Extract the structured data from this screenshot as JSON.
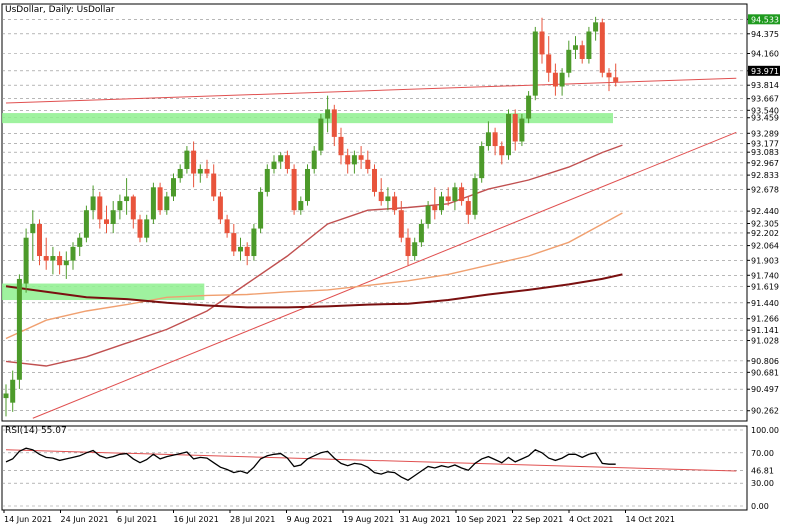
{
  "title": "UsDollar, Daily:  UsDollar",
  "colors": {
    "bull": "#4c9a2a",
    "bear": "#e8543c",
    "grid": "#8c8c8c",
    "zone": "#8ef08e",
    "trend": "#e05050",
    "ma_fast": "#c05050",
    "ma_mid": "#f0a070",
    "ma_slow": "#7a1010",
    "tag_bg": "#000000",
    "tag_bg_green": "#1e9a1e",
    "rsi_line": "#000000"
  },
  "chart_data": {
    "type": "candlestick",
    "instrument": "UsDollar",
    "timeframe": "Daily",
    "ylim": [
      90.15,
      94.7
    ],
    "xlabels": [
      "14 Jun 2021",
      "24 Jun 2021",
      "6 Jul 2021",
      "16 Jul 2021",
      "28 Jul 2021",
      "9 Aug 2021",
      "19 Aug 2021",
      "31 Aug 2021",
      "10 Sep 2021",
      "22 Sep 2021",
      "4 Oct 2021",
      "14 Oct 2021"
    ],
    "price_levels": [
      "94.533",
      "94.375",
      "94.160",
      "93.971",
      "93.814",
      "93.667",
      "93.540",
      "93.459",
      "93.289",
      "93.177",
      "93.083",
      "92.967",
      "92.833",
      "92.678",
      "92.440",
      "92.305",
      "92.202",
      "92.064",
      "91.903",
      "91.740",
      "91.619",
      "91.440",
      "91.266",
      "91.141",
      "91.028",
      "90.806",
      "90.681",
      "90.497",
      "90.262"
    ],
    "highlighted_levels": [
      "94.533",
      "93.971"
    ],
    "candles": [
      {
        "o": 90.4,
        "h": 90.55,
        "l": 90.2,
        "c": 90.45
      },
      {
        "o": 90.35,
        "h": 90.7,
        "l": 90.25,
        "c": 90.6
      },
      {
        "o": 90.6,
        "h": 91.75,
        "l": 90.5,
        "c": 91.7
      },
      {
        "o": 91.65,
        "h": 92.25,
        "l": 91.55,
        "c": 92.15
      },
      {
        "o": 92.2,
        "h": 92.45,
        "l": 91.9,
        "c": 92.3
      },
      {
        "o": 92.3,
        "h": 92.35,
        "l": 91.85,
        "c": 91.95
      },
      {
        "o": 91.95,
        "h": 92.15,
        "l": 91.8,
        "c": 91.9
      },
      {
        "o": 91.9,
        "h": 92.05,
        "l": 91.75,
        "c": 91.95
      },
      {
        "o": 91.95,
        "h": 92.0,
        "l": 91.75,
        "c": 91.85
      },
      {
        "o": 91.85,
        "h": 92.0,
        "l": 91.7,
        "c": 91.9
      },
      {
        "o": 91.9,
        "h": 92.1,
        "l": 91.8,
        "c": 92.05
      },
      {
        "o": 92.05,
        "h": 92.2,
        "l": 91.95,
        "c": 92.15
      },
      {
        "o": 92.15,
        "h": 92.5,
        "l": 92.1,
        "c": 92.45
      },
      {
        "o": 92.45,
        "h": 92.72,
        "l": 92.35,
        "c": 92.6
      },
      {
        "o": 92.6,
        "h": 92.65,
        "l": 92.25,
        "c": 92.35
      },
      {
        "o": 92.35,
        "h": 92.5,
        "l": 92.2,
        "c": 92.3
      },
      {
        "o": 92.3,
        "h": 92.55,
        "l": 92.2,
        "c": 92.45
      },
      {
        "o": 92.45,
        "h": 92.62,
        "l": 92.35,
        "c": 92.55
      },
      {
        "o": 92.55,
        "h": 92.8,
        "l": 92.4,
        "c": 92.6
      },
      {
        "o": 92.6,
        "h": 92.62,
        "l": 92.25,
        "c": 92.35
      },
      {
        "o": 92.35,
        "h": 92.4,
        "l": 92.1,
        "c": 92.15
      },
      {
        "o": 92.15,
        "h": 92.4,
        "l": 92.1,
        "c": 92.35
      },
      {
        "o": 92.35,
        "h": 92.75,
        "l": 92.3,
        "c": 92.7
      },
      {
        "o": 92.7,
        "h": 92.75,
        "l": 92.4,
        "c": 92.45
      },
      {
        "o": 92.45,
        "h": 92.65,
        "l": 92.4,
        "c": 92.6
      },
      {
        "o": 92.6,
        "h": 92.85,
        "l": 92.55,
        "c": 92.8
      },
      {
        "o": 92.8,
        "h": 92.95,
        "l": 92.75,
        "c": 92.9
      },
      {
        "o": 92.9,
        "h": 93.15,
        "l": 92.85,
        "c": 93.1
      },
      {
        "o": 93.1,
        "h": 93.2,
        "l": 92.7,
        "c": 92.85
      },
      {
        "o": 92.85,
        "h": 92.95,
        "l": 92.75,
        "c": 92.9
      },
      {
        "o": 92.9,
        "h": 93.0,
        "l": 92.8,
        "c": 92.85
      },
      {
        "o": 92.85,
        "h": 92.95,
        "l": 92.55,
        "c": 92.6
      },
      {
        "o": 92.6,
        "h": 92.65,
        "l": 92.3,
        "c": 92.35
      },
      {
        "o": 92.35,
        "h": 92.4,
        "l": 92.15,
        "c": 92.2
      },
      {
        "o": 92.2,
        "h": 92.3,
        "l": 91.95,
        "c": 92.0
      },
      {
        "o": 92.0,
        "h": 92.15,
        "l": 91.9,
        "c": 92.05
      },
      {
        "o": 92.05,
        "h": 92.1,
        "l": 91.85,
        "c": 91.95
      },
      {
        "o": 91.95,
        "h": 92.3,
        "l": 91.9,
        "c": 92.25
      },
      {
        "o": 92.25,
        "h": 92.7,
        "l": 92.2,
        "c": 92.65
      },
      {
        "o": 92.65,
        "h": 92.95,
        "l": 92.6,
        "c": 92.9
      },
      {
        "o": 92.9,
        "h": 93.05,
        "l": 92.85,
        "c": 92.98
      },
      {
        "o": 92.98,
        "h": 93.08,
        "l": 92.9,
        "c": 93.05
      },
      {
        "o": 93.05,
        "h": 93.1,
        "l": 92.85,
        "c": 92.9
      },
      {
        "o": 92.9,
        "h": 92.95,
        "l": 92.4,
        "c": 92.45
      },
      {
        "o": 92.45,
        "h": 92.6,
        "l": 92.4,
        "c": 92.55
      },
      {
        "o": 92.55,
        "h": 92.95,
        "l": 92.5,
        "c": 92.9
      },
      {
        "o": 92.9,
        "h": 93.15,
        "l": 92.85,
        "c": 93.1
      },
      {
        "o": 93.1,
        "h": 93.5,
        "l": 93.05,
        "c": 93.45
      },
      {
        "o": 93.45,
        "h": 93.7,
        "l": 93.3,
        "c": 93.55
      },
      {
        "o": 93.55,
        "h": 93.6,
        "l": 93.15,
        "c": 93.25
      },
      {
        "o": 93.25,
        "h": 93.35,
        "l": 92.95,
        "c": 93.05
      },
      {
        "o": 93.05,
        "h": 93.12,
        "l": 92.85,
        "c": 92.95
      },
      {
        "o": 92.95,
        "h": 93.1,
        "l": 92.85,
        "c": 93.05
      },
      {
        "o": 93.05,
        "h": 93.15,
        "l": 92.9,
        "c": 93.0
      },
      {
        "o": 93.0,
        "h": 93.1,
        "l": 92.85,
        "c": 92.9
      },
      {
        "o": 92.9,
        "h": 92.95,
        "l": 92.6,
        "c": 92.65
      },
      {
        "o": 92.65,
        "h": 92.8,
        "l": 92.5,
        "c": 92.55
      },
      {
        "o": 92.55,
        "h": 92.7,
        "l": 92.45,
        "c": 92.6
      },
      {
        "o": 92.6,
        "h": 92.65,
        "l": 92.4,
        "c": 92.45
      },
      {
        "o": 92.45,
        "h": 92.55,
        "l": 92.1,
        "c": 92.15
      },
      {
        "o": 92.15,
        "h": 92.25,
        "l": 91.85,
        "c": 91.95
      },
      {
        "o": 91.95,
        "h": 92.15,
        "l": 91.9,
        "c": 92.1
      },
      {
        "o": 92.1,
        "h": 92.35,
        "l": 92.05,
        "c": 92.3
      },
      {
        "o": 92.3,
        "h": 92.55,
        "l": 92.25,
        "c": 92.5
      },
      {
        "o": 92.5,
        "h": 92.7,
        "l": 92.35,
        "c": 92.45
      },
      {
        "o": 92.45,
        "h": 92.65,
        "l": 92.4,
        "c": 92.6
      },
      {
        "o": 92.6,
        "h": 92.7,
        "l": 92.5,
        "c": 92.55
      },
      {
        "o": 92.55,
        "h": 92.75,
        "l": 92.45,
        "c": 92.7
      },
      {
        "o": 92.7,
        "h": 92.75,
        "l": 92.5,
        "c": 92.55
      },
      {
        "o": 92.55,
        "h": 92.6,
        "l": 92.3,
        "c": 92.4
      },
      {
        "o": 92.4,
        "h": 92.85,
        "l": 92.35,
        "c": 92.8
      },
      {
        "o": 92.8,
        "h": 93.2,
        "l": 92.75,
        "c": 93.15
      },
      {
        "o": 93.15,
        "h": 93.42,
        "l": 93.1,
        "c": 93.3
      },
      {
        "o": 93.3,
        "h": 93.35,
        "l": 93.05,
        "c": 93.15
      },
      {
        "o": 93.15,
        "h": 93.2,
        "l": 92.95,
        "c": 93.05
      },
      {
        "o": 93.05,
        "h": 93.55,
        "l": 93.0,
        "c": 93.5
      },
      {
        "o": 93.5,
        "h": 93.55,
        "l": 93.1,
        "c": 93.2
      },
      {
        "o": 93.2,
        "h": 93.5,
        "l": 93.15,
        "c": 93.45
      },
      {
        "o": 93.45,
        "h": 93.75,
        "l": 93.4,
        "c": 93.7
      },
      {
        "o": 93.7,
        "h": 94.45,
        "l": 93.65,
        "c": 94.4
      },
      {
        "o": 94.4,
        "h": 94.55,
        "l": 94.05,
        "c": 94.15
      },
      {
        "o": 94.15,
        "h": 94.35,
        "l": 93.85,
        "c": 93.95
      },
      {
        "o": 93.95,
        "h": 94.05,
        "l": 93.7,
        "c": 93.8
      },
      {
        "o": 93.8,
        "h": 94.0,
        "l": 93.7,
        "c": 93.95
      },
      {
        "o": 93.95,
        "h": 94.3,
        "l": 93.9,
        "c": 94.2
      },
      {
        "o": 94.2,
        "h": 94.35,
        "l": 94.1,
        "c": 94.25
      },
      {
        "o": 94.25,
        "h": 94.3,
        "l": 94.05,
        "c": 94.1
      },
      {
        "o": 94.1,
        "h": 94.45,
        "l": 94.05,
        "c": 94.4
      },
      {
        "o": 94.4,
        "h": 94.56,
        "l": 94.3,
        "c": 94.5
      },
      {
        "o": 94.5,
        "h": 94.54,
        "l": 93.9,
        "c": 93.95
      },
      {
        "o": 93.95,
        "h": 94.0,
        "l": 93.75,
        "c": 93.9
      },
      {
        "o": 93.9,
        "h": 94.05,
        "l": 93.8,
        "c": 93.85
      }
    ],
    "zones": [
      {
        "y1": 93.4,
        "y2": 93.51,
        "i_from": 0,
        "i_to": 90
      },
      {
        "y1": 91.47,
        "y2": 91.65,
        "i_from": 0,
        "i_to": 29
      }
    ],
    "trendlines": [
      {
        "i1": 0,
        "p1": 93.62,
        "i2": 109,
        "p2": 93.89
      },
      {
        "i1": 4,
        "p1": 90.18,
        "i2": 109,
        "p2": 93.3
      }
    ],
    "moving_averages": [
      {
        "role": "ma_fast",
        "points": [
          [
            0,
            90.8
          ],
          [
            6,
            90.75
          ],
          [
            12,
            90.85
          ],
          [
            18,
            91.0
          ],
          [
            24,
            91.15
          ],
          [
            30,
            91.35
          ],
          [
            36,
            91.65
          ],
          [
            42,
            91.95
          ],
          [
            48,
            92.3
          ],
          [
            54,
            92.45
          ],
          [
            60,
            92.48
          ],
          [
            66,
            92.52
          ],
          [
            72,
            92.68
          ],
          [
            78,
            92.78
          ],
          [
            84,
            92.92
          ],
          [
            89,
            93.08
          ],
          [
            92,
            93.16
          ]
        ]
      },
      {
        "role": "ma_mid",
        "points": [
          [
            0,
            91.05
          ],
          [
            6,
            91.25
          ],
          [
            12,
            91.35
          ],
          [
            18,
            91.42
          ],
          [
            24,
            91.5
          ],
          [
            30,
            91.52
          ],
          [
            36,
            91.53
          ],
          [
            42,
            91.56
          ],
          [
            48,
            91.58
          ],
          [
            54,
            91.63
          ],
          [
            60,
            91.68
          ],
          [
            66,
            91.75
          ],
          [
            72,
            91.85
          ],
          [
            78,
            91.95
          ],
          [
            84,
            92.1
          ],
          [
            89,
            92.3
          ],
          [
            92,
            92.42
          ]
        ]
      },
      {
        "role": "ma_slow",
        "points": [
          [
            0,
            91.62
          ],
          [
            6,
            91.56
          ],
          [
            12,
            91.5
          ],
          [
            18,
            91.48
          ],
          [
            24,
            91.44
          ],
          [
            30,
            91.41
          ],
          [
            36,
            91.39
          ],
          [
            42,
            91.39
          ],
          [
            48,
            91.4
          ],
          [
            54,
            91.42
          ],
          [
            60,
            91.43
          ],
          [
            66,
            91.47
          ],
          [
            72,
            91.53
          ],
          [
            78,
            91.58
          ],
          [
            84,
            91.64
          ],
          [
            89,
            91.7
          ],
          [
            92,
            91.75
          ]
        ]
      }
    ],
    "rsi": {
      "label": "RSI(14) 55.07",
      "ylim": [
        0,
        100
      ],
      "levels": [
        "100.00",
        "70.00",
        "46.81",
        "30.00",
        "0.00"
      ],
      "values": [
        58,
        62,
        72,
        76,
        74,
        68,
        64,
        63,
        60,
        62,
        64,
        66,
        70,
        73,
        66,
        63,
        65,
        68,
        69,
        62,
        57,
        61,
        68,
        62,
        65,
        67,
        69,
        71,
        62,
        64,
        63,
        57,
        51,
        48,
        44,
        46,
        43,
        51,
        62,
        66,
        68,
        69,
        63,
        52,
        54,
        62,
        66,
        70,
        72,
        63,
        56,
        53,
        56,
        55,
        51,
        44,
        42,
        45,
        44,
        38,
        34,
        40,
        46,
        52,
        50,
        53,
        51,
        54,
        50,
        47,
        56,
        62,
        65,
        61,
        57,
        64,
        58,
        62,
        66,
        74,
        70,
        63,
        60,
        63,
        68,
        68,
        64,
        68,
        70,
        56,
        55,
        55
      ],
      "trendline": {
        "i1": 0,
        "v1": 74,
        "i2": 109,
        "v2": 46
      }
    }
  }
}
